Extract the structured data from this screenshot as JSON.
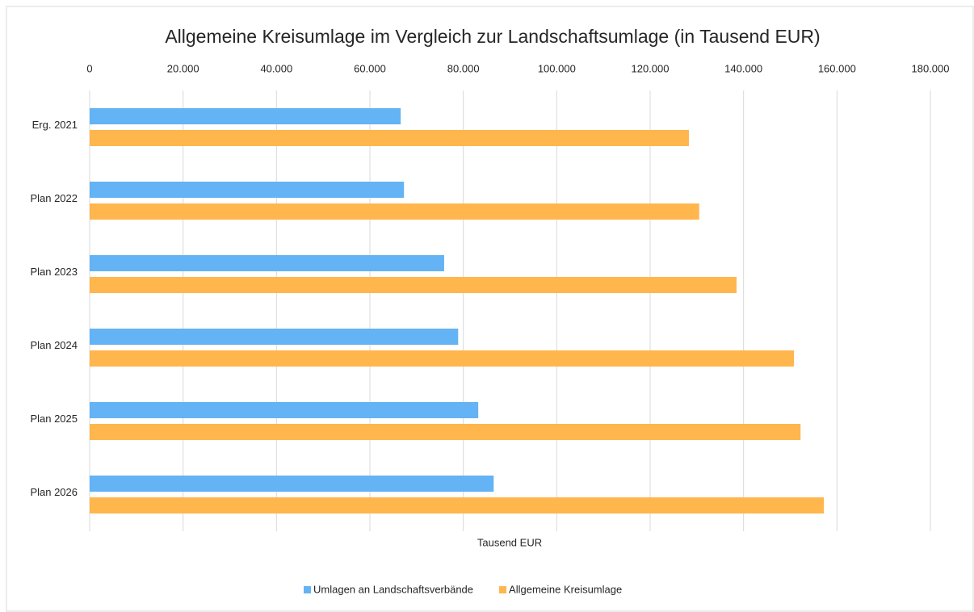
{
  "chart_data": {
    "type": "bar",
    "orientation": "horizontal",
    "title": "Allgemeine Kreisumlage im Vergleich zur Landschaftsumlage (in Tausend EUR)",
    "x_label": "Tausend EUR",
    "categories": [
      "Erg. 2021",
      "Plan 2022",
      "Plan 2023",
      "Plan 2024",
      "Plan 2025",
      "Plan 2026"
    ],
    "series": [
      {
        "name": "Umlagen an Landschaftsverbände",
        "color": "#63b3f5",
        "values": [
          66600,
          67300,
          75900,
          78900,
          83200,
          86500
        ]
      },
      {
        "name": "Allgemeine Kreisumlage",
        "color": "#ffb64d",
        "values": [
          128300,
          130500,
          138500,
          150800,
          152200,
          157200
        ]
      }
    ],
    "xlim": [
      0,
      180000
    ],
    "xticks": [
      0,
      {
        "value": 20000,
        "label": "20.000"
      },
      {
        "value": 40000,
        "label": "40.000"
      },
      {
        "value": 60000,
        "label": "60.000"
      },
      {
        "value": 80000,
        "label": "80.000"
      },
      {
        "value": 100000,
        "label": "100.000"
      },
      {
        "value": 120000,
        "label": "120.000"
      },
      {
        "value": 140000,
        "label": "140.000"
      },
      {
        "value": 160000,
        "label": "160.000"
      },
      {
        "value": 180000,
        "label": "180.000"
      }
    ],
    "grid": true,
    "legend": "bottom"
  }
}
